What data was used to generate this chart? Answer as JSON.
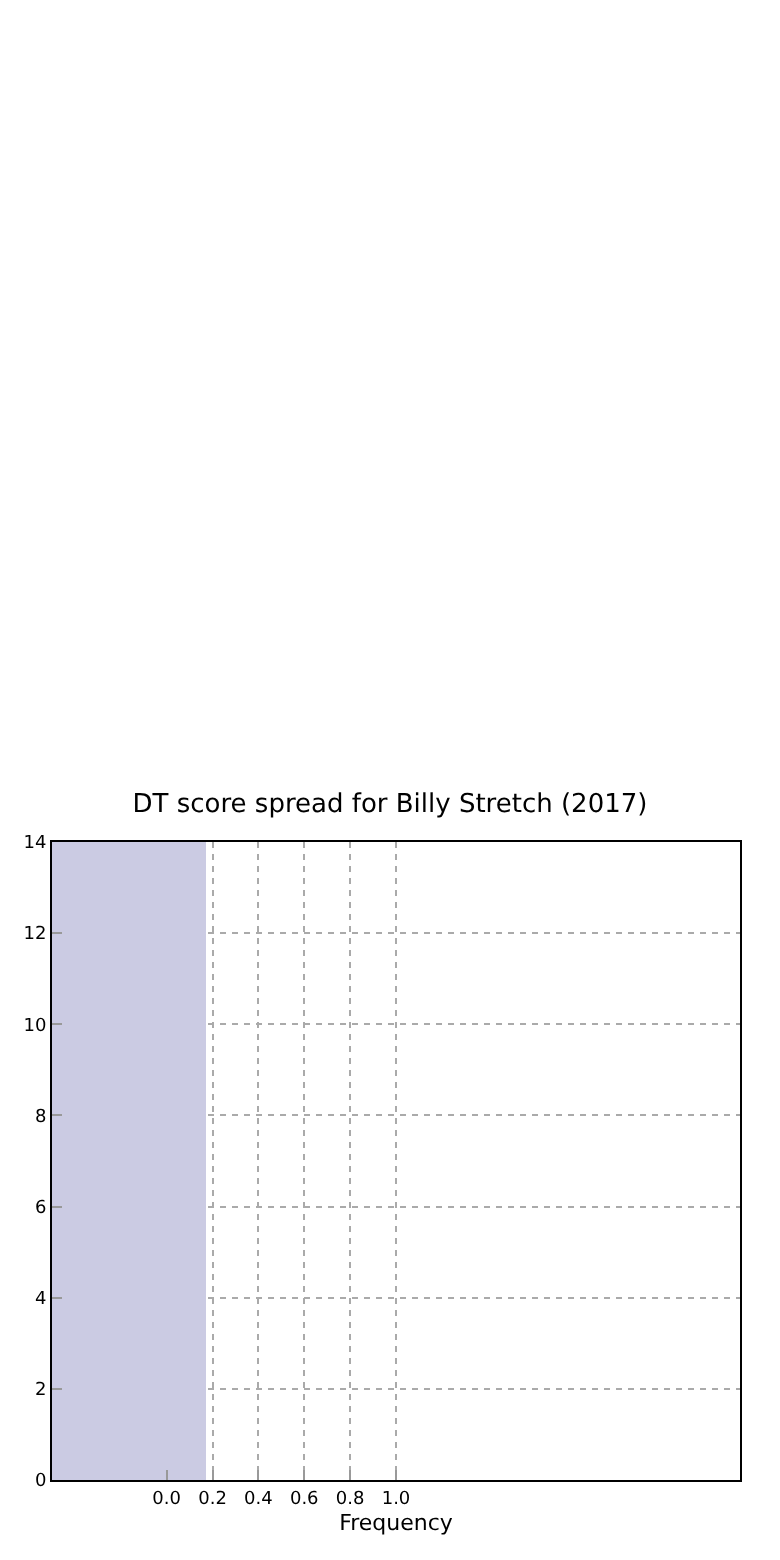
{
  "chart_data": {
    "type": "histogram",
    "title": "DT score spread for Billy Stretch (2017)",
    "xlabel": "Frequency",
    "orientation": "horizontal",
    "bins": [
      0,
      14
    ],
    "values": [
      0.67
    ],
    "base": [
      -0.5
    ],
    "color": "#cbcbe3",
    "xlim": [
      -0.5,
      2.5
    ],
    "xticks": [
      {
        "value": 0,
        "label": "0.0"
      },
      {
        "value": 0.2,
        "label": "0.2"
      },
      {
        "value": 0.4,
        "label": "0.4"
      },
      {
        "value": 0.6,
        "label": "0.6"
      },
      {
        "value": 0.8,
        "label": "0.8"
      },
      {
        "value": 1,
        "label": "1.0"
      }
    ],
    "ylim": [
      0,
      14
    ],
    "yticks": [
      0,
      2,
      4,
      6,
      8,
      10,
      12,
      14
    ],
    "grid": true,
    "line_style": "dotted"
  }
}
